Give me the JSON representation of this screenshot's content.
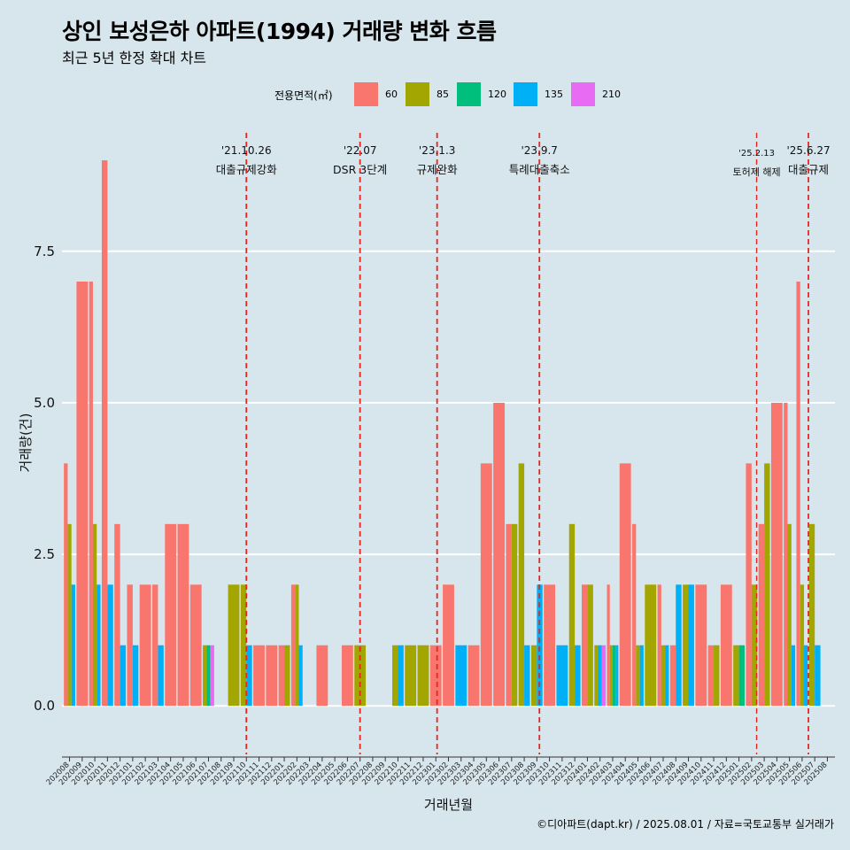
{
  "title": "상인 보성은하 아파트(1994) 거래량 변화 흐름",
  "subtitle": "최근 5년 한정 확대 차트",
  "caption": "©디아파트(dapt.kr) / 2025.08.01 / 자료=국토교통부 실거래가",
  "legend": {
    "title": "전용면적(㎡)",
    "items": [
      {
        "label": "60",
        "color": "#F8766D"
      },
      {
        "label": "85",
        "color": "#A3A500"
      },
      {
        "label": "120",
        "color": "#00BF7D"
      },
      {
        "label": "135",
        "color": "#00B0F6"
      },
      {
        "label": "210",
        "color": "#E76BF3"
      }
    ]
  },
  "chart_data": {
    "type": "bar",
    "xlabel": "거래년월",
    "ylabel": "거래량(건)",
    "ylim": [
      -0.8,
      9.6
    ],
    "yticks": [
      0,
      2.5,
      5,
      7.5
    ],
    "ytick_labels": [
      "0.0",
      "2.5",
      "5.0",
      "7.5"
    ],
    "categories": [
      "202008",
      "202009",
      "202010",
      "202011",
      "202012",
      "202101",
      "202102",
      "202103",
      "202104",
      "202105",
      "202106",
      "202107",
      "202108",
      "202109",
      "202110",
      "202111",
      "202112",
      "202201",
      "202202",
      "202203",
      "202204",
      "202205",
      "202206",
      "202207",
      "202208",
      "202209",
      "202210",
      "202211",
      "202212",
      "202301",
      "202302",
      "202303",
      "202304",
      "202305",
      "202306",
      "202307",
      "202308",
      "202309",
      "202310",
      "202311",
      "202312",
      "202401",
      "202402",
      "202403",
      "202404",
      "202405",
      "202406",
      "202407",
      "202408",
      "202409",
      "202410",
      "202411",
      "202412",
      "202501",
      "202502",
      "202503",
      "202504",
      "202505",
      "202506",
      "202507",
      "202508"
    ],
    "series": [
      {
        "name": "60",
        "values": [
          4,
          7,
          7,
          9,
          3,
          2,
          2,
          2,
          3,
          3,
          2,
          0,
          0,
          0,
          0,
          1,
          1,
          1,
          2,
          0,
          1,
          0,
          1,
          0,
          0,
          0,
          0,
          0,
          0,
          1,
          2,
          0,
          1,
          4,
          5,
          3,
          0,
          0,
          2,
          0,
          0,
          2,
          0,
          2,
          4,
          3,
          0,
          2,
          1,
          0,
          2,
          1,
          2,
          0,
          4,
          3,
          5,
          5,
          7,
          0,
          0
        ]
      },
      {
        "name": "85",
        "values": [
          3,
          0,
          3,
          0,
          0,
          0,
          0,
          0,
          0,
          0,
          0,
          1,
          0,
          2,
          2,
          0,
          0,
          1,
          2,
          0,
          0,
          0,
          0,
          1,
          0,
          0,
          1,
          1,
          1,
          0,
          0,
          0,
          0,
          0,
          0,
          3,
          4,
          1,
          0,
          0,
          3,
          2,
          1,
          1,
          0,
          1,
          2,
          1,
          0,
          2,
          0,
          1,
          0,
          1,
          2,
          4,
          0,
          3,
          2,
          3,
          0
        ]
      },
      {
        "name": "120",
        "values": [
          0,
          0,
          0,
          0,
          0,
          0,
          0,
          0,
          0,
          0,
          0,
          1,
          0,
          0,
          0,
          0,
          0,
          0,
          0,
          0,
          0,
          0,
          0,
          0,
          0,
          0,
          0,
          0,
          0,
          0,
          0,
          0,
          0,
          0,
          0,
          0,
          0,
          0,
          0,
          0,
          0,
          0,
          0,
          1,
          0,
          0,
          0,
          0,
          0,
          0,
          0,
          0,
          0,
          1,
          0,
          0,
          0,
          0,
          0,
          0,
          0
        ]
      },
      {
        "name": "135",
        "values": [
          2,
          0,
          2,
          2,
          1,
          1,
          0,
          1,
          0,
          0,
          0,
          0,
          0,
          0,
          1,
          0,
          0,
          0,
          1,
          0,
          0,
          0,
          0,
          0,
          0,
          0,
          1,
          0,
          0,
          0,
          0,
          1,
          0,
          0,
          0,
          0,
          1,
          2,
          0,
          1,
          1,
          0,
          1,
          1,
          0,
          1,
          0,
          1,
          2,
          2,
          0,
          0,
          0,
          0,
          0,
          0,
          0,
          1,
          1,
          1,
          0
        ]
      },
      {
        "name": "210",
        "values": [
          0,
          0,
          0,
          0,
          0,
          0,
          0,
          0,
          0,
          0,
          0,
          1,
          0,
          0,
          0,
          0,
          0,
          0,
          0,
          0,
          0,
          0,
          0,
          0,
          0,
          0,
          0,
          0,
          0,
          0,
          0,
          0,
          0,
          0,
          0,
          0,
          0,
          0,
          0,
          0,
          0,
          0,
          1,
          0,
          0,
          0,
          0,
          0,
          0,
          0,
          0,
          0,
          0,
          0,
          0,
          0,
          0,
          0,
          0,
          0,
          0
        ]
      }
    ],
    "events": [
      {
        "date": "'21.10.26",
        "label": "대출규제강화",
        "x": 14.0
      },
      {
        "date": "'22.07",
        "label": "DSR 3단계",
        "x": 23.0
      },
      {
        "date": "'23.1.3",
        "label": "규제완화",
        "x": 29.1
      },
      {
        "date": "'23.9.7",
        "label": "특례대출축소",
        "x": 37.2
      },
      {
        "date": "'25.2.13",
        "label": "토허제 해제",
        "x": 54.4
      },
      {
        "date": "'25.6.27",
        "label": "대출규제",
        "x": 58.5
      }
    ]
  }
}
